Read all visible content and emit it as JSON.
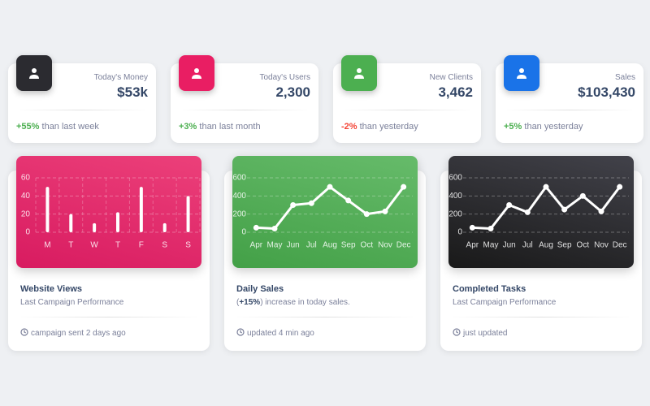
{
  "stats": [
    {
      "label": "Today's Money",
      "value": "$53k",
      "change": "+55%",
      "note": "than last week",
      "color": "#2b2b30"
    },
    {
      "label": "Today's Users",
      "value": "2,300",
      "change": "+3%",
      "note": "than last month",
      "color": "#e91e63"
    },
    {
      "label": "New Clients",
      "value": "3,462",
      "change": "-2%",
      "note": "than yesterday",
      "color": "#4caf50"
    },
    {
      "label": "Sales",
      "value": "$103,430",
      "change": "+5%",
      "note": "than yesterday",
      "color": "#1a73e8"
    }
  ],
  "cards": [
    {
      "title": "Website Views",
      "subtitle": "Last Campaign Performance",
      "footer": "campaign sent 2 days ago",
      "chart": {
        "type": "bar",
        "colors": [
          "#ec407a",
          "#d81b60"
        ],
        "categories": [
          "M",
          "T",
          "W",
          "T",
          "F",
          "S",
          "S"
        ],
        "values": [
          50,
          20,
          10,
          22,
          50,
          10,
          40
        ],
        "ylim": [
          0,
          60
        ],
        "yticks": [
          0,
          20,
          40,
          60
        ],
        "grid": true
      }
    },
    {
      "title": "Daily Sales",
      "subtitle_parts": [
        "(",
        "+15%",
        ") increase in today sales."
      ],
      "footer": "updated 4 min ago",
      "chart": {
        "type": "line",
        "colors": [
          "#66bb6a",
          "#43a047"
        ],
        "categories": [
          "Apr",
          "May",
          "Jun",
          "Jul",
          "Aug",
          "Sep",
          "Oct",
          "Nov",
          "Dec"
        ],
        "values": [
          50,
          40,
          300,
          320,
          500,
          350,
          200,
          230,
          500
        ],
        "ylim": [
          0,
          600
        ],
        "yticks": [
          0,
          200,
          400,
          600
        ],
        "grid": true
      }
    },
    {
      "title": "Completed Tasks",
      "subtitle": "Last Campaign Performance",
      "footer": "just updated",
      "chart": {
        "type": "line",
        "colors": [
          "#42424a",
          "#191919"
        ],
        "categories": [
          "Apr",
          "May",
          "Jun",
          "Jul",
          "Aug",
          "Sep",
          "Oct",
          "Nov",
          "Dec"
        ],
        "values": [
          50,
          40,
          300,
          220,
          500,
          250,
          400,
          230,
          500
        ],
        "ylim": [
          0,
          600
        ],
        "yticks": [
          0,
          200,
          400,
          600
        ],
        "grid": true
      }
    }
  ]
}
